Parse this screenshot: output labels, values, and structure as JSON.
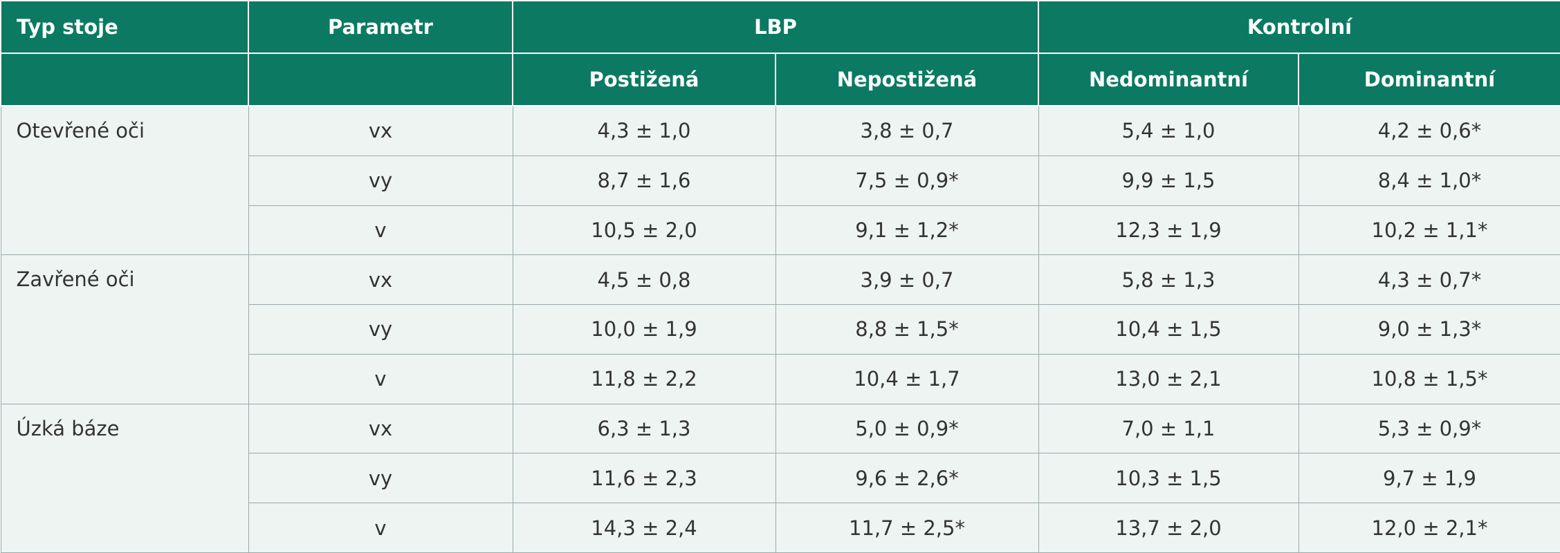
{
  "header": {
    "row1": [
      "Typ stoje",
      "Parametr",
      "LBP",
      "Kontrolní"
    ],
    "row2": [
      "Postižená",
      "Nepostižená",
      "Nedominantní",
      "Dominantní"
    ]
  },
  "groups": [
    {
      "name": "Otevřené oči",
      "rows": [
        {
          "param": "vx",
          "values": [
            "4,3 ± 1,0",
            "3,8 ± 0,7",
            "5,4 ± 1,0",
            "4,2 ± 0,6*"
          ]
        },
        {
          "param": "vy",
          "values": [
            "8,7 ± 1,6",
            "7,5 ± 0,9*",
            "9,9 ± 1,5",
            "8,4 ± 1,0*"
          ]
        },
        {
          "param": "v",
          "values": [
            "10,5 ± 2,0",
            "9,1 ± 1,2*",
            "12,3 ± 1,9",
            "10,2 ± 1,1*"
          ]
        }
      ]
    },
    {
      "name": "Zavřené oči",
      "rows": [
        {
          "param": "vx",
          "values": [
            "4,5 ± 0,8",
            "3,9 ± 0,7",
            "5,8 ± 1,3",
            "4,3 ± 0,7*"
          ]
        },
        {
          "param": "vy",
          "values": [
            "10,0 ± 1,9",
            "8,8 ± 1,5*",
            "10,4 ± 1,5",
            "9,0 ± 1,3*"
          ]
        },
        {
          "param": "v",
          "values": [
            "11,8 ± 2,2",
            "10,4 ± 1,7",
            "13,0 ± 2,1",
            "10,8 ± 1,5*"
          ]
        }
      ]
    },
    {
      "name": "Úzká báze",
      "rows": [
        {
          "param": "vx",
          "values": [
            "6,3 ± 1,3",
            "5,0 ± 0,9*",
            "7,0 ± 1,1",
            "5,3 ± 0,9*"
          ]
        },
        {
          "param": "vy",
          "values": [
            "11,6 ± 2,3",
            "9,6 ± 2,6*",
            "10,3 ± 1,5",
            "9,7 ± 1,9"
          ]
        },
        {
          "param": "v",
          "values": [
            "14,3 ± 2,4",
            "11,7 ± 2,5*",
            "13,7 ± 2,0",
            "12,0 ± 2,1*"
          ]
        }
      ]
    }
  ]
}
